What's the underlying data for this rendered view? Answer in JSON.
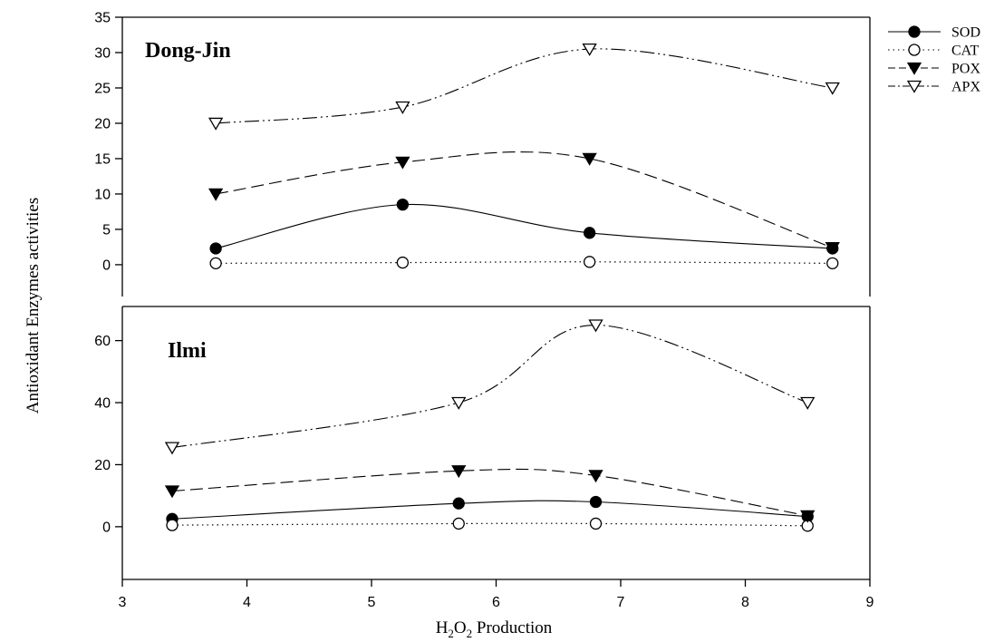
{
  "chart_data": {
    "type": "line",
    "ylabel": "Antioxidant Enzymes activities",
    "xlabel": {
      "prefix": "H",
      "sub1": "2",
      "mid": "O",
      "sub2": "2",
      "suffix": " Production"
    },
    "xlim": [
      3,
      9
    ],
    "xticks": [
      3,
      4,
      5,
      6,
      7,
      8,
      9
    ],
    "legend": {
      "position": "top-right",
      "entries": [
        {
          "name": "SOD",
          "marker": "filled-circle",
          "dash": "solid"
        },
        {
          "name": "CAT",
          "marker": "open-circle",
          "dash": "dotted"
        },
        {
          "name": "POX",
          "marker": "filled-triangle-down",
          "dash": "dashed"
        },
        {
          "name": "APX",
          "marker": "open-triangle-down",
          "dash": "dash-dot-dot"
        }
      ]
    },
    "panels": [
      {
        "title": "Dong-Jin",
        "ylim": [
          -4.5,
          35
        ],
        "yticks": [
          0,
          5,
          10,
          15,
          20,
          25,
          30,
          35
        ],
        "series": [
          {
            "name": "SOD",
            "x": [
              3.75,
              5.25,
              6.75,
              8.7
            ],
            "y": [
              2.3,
              8.5,
              4.5,
              2.3
            ]
          },
          {
            "name": "CAT",
            "x": [
              3.75,
              5.25,
              6.75,
              8.7
            ],
            "y": [
              0.2,
              0.3,
              0.4,
              0.2
            ]
          },
          {
            "name": "POX",
            "x": [
              3.75,
              5.25,
              6.75,
              8.7
            ],
            "y": [
              10,
              14.5,
              15,
              2.4
            ]
          },
          {
            "name": "APX",
            "x": [
              3.75,
              5.25,
              6.75,
              8.7
            ],
            "y": [
              20,
              22.3,
              30.5,
              25
            ]
          }
        ]
      },
      {
        "title": "Ilmi",
        "ylim": [
          -17,
          71
        ],
        "yticks": [
          0,
          20,
          40,
          60
        ],
        "series": [
          {
            "name": "SOD",
            "x": [
              3.4,
              5.7,
              6.8,
              8.5
            ],
            "y": [
              2.5,
              7.5,
              8,
              3.3
            ]
          },
          {
            "name": "CAT",
            "x": [
              3.4,
              5.7,
              6.8,
              8.5
            ],
            "y": [
              0.5,
              1,
              1,
              0.3
            ]
          },
          {
            "name": "POX",
            "x": [
              3.4,
              5.7,
              6.8,
              8.5
            ],
            "y": [
              11.5,
              18,
              16.5,
              3.5
            ]
          },
          {
            "name": "APX",
            "x": [
              3.4,
              5.7,
              6.8,
              8.5
            ],
            "y": [
              25.5,
              40,
              65,
              40
            ]
          }
        ]
      }
    ]
  }
}
